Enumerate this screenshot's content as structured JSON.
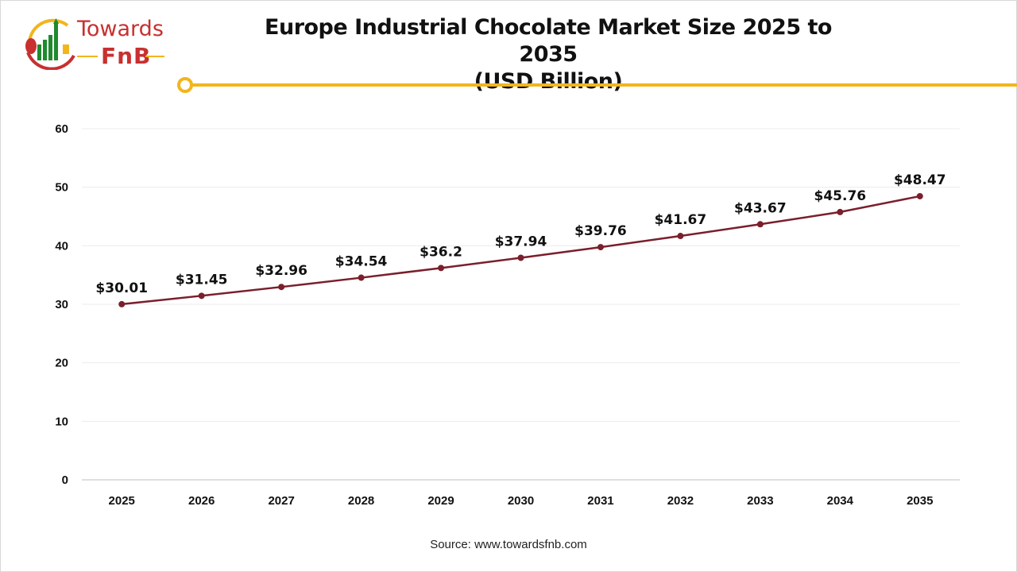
{
  "logo": {
    "line1": "Towards",
    "line2": "FnB"
  },
  "source": "Source: www.towardsfnb.com",
  "colors": {
    "line": "#7a1f2b",
    "accent": "#f2b51c",
    "logo_red": "#c8302f",
    "logo_green": "#1f8a2e"
  },
  "chart_data": {
    "type": "line",
    "title": "Europe Industrial Chocolate Market Size 2025 to 2035",
    "subtitle": "(USD Billion)",
    "categories": [
      "2025",
      "2026",
      "2027",
      "2028",
      "2029",
      "2030",
      "2031",
      "2032",
      "2033",
      "2034",
      "2035"
    ],
    "values": [
      30.01,
      31.45,
      32.96,
      34.54,
      36.2,
      37.94,
      39.76,
      41.67,
      43.67,
      45.76,
      48.47
    ],
    "data_labels": [
      "$30.01",
      "$31.45",
      "$32.96",
      "$34.54",
      "$36.2",
      "$37.94",
      "$39.76",
      "$41.67",
      "$43.67",
      "$45.76",
      "$48.47"
    ],
    "yticks": [
      0,
      10,
      20,
      30,
      40,
      50,
      60
    ],
    "ylim": [
      0,
      60
    ],
    "grid": true,
    "xlabel": "",
    "ylabel": ""
  }
}
